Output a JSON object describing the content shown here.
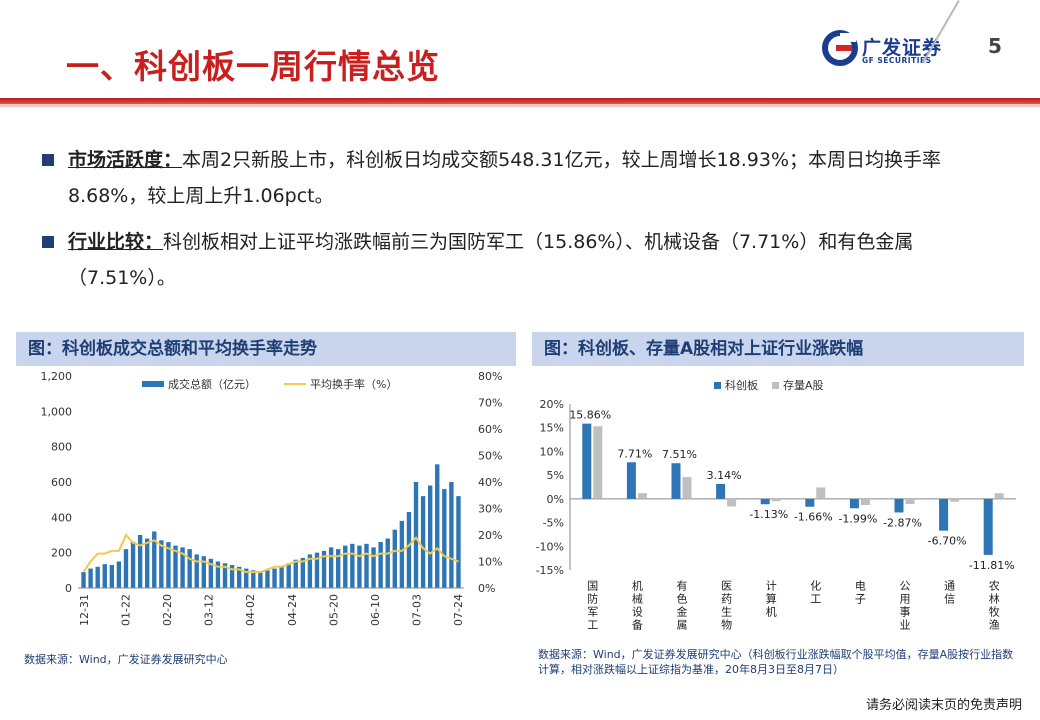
{
  "header": {
    "title": "一、科创板一周行情总览",
    "page_number": "5",
    "logo_cn": "广发证券",
    "logo_en": "GF SECURITIES"
  },
  "bullets": [
    {
      "key": "市场活跃度：",
      "text": "本周2只新股上市，科创板日均成交额548.31亿元，较上周增长18.93%；本周日均换手率8.68%，较上周上升1.06pct。"
    },
    {
      "key": "行业比较：",
      "text": "科创板相对上证平均涨跌幅前三为国防军工（15.86%）、机械设备（7.71%）和有色金属（7.51%）。"
    }
  ],
  "left_panel": {
    "title": "图：科创板成交总额和平均换手率走势",
    "source": "数据来源：Wind，广发证券发展研究中心"
  },
  "right_panel": {
    "title": "图：科创板、存量A股相对上证行业涨跌幅",
    "source": "数据来源：Wind，广发证券发展研究中心（科创板行业涨跌幅取个股平均值，存量A股按行业指数计算，相对涨跌幅以上证综指为基准，20年8月3日至8月7日）"
  },
  "disclaimer": "请务必阅读末页的免责声明",
  "colors": {
    "accent_red": "#c8201e",
    "navy": "#1f3f74",
    "bar_blue": "#2e75b6",
    "bar_gray": "#bfbfbf",
    "line_yellow": "#f2c94c"
  },
  "chart_data": [
    {
      "type": "bar",
      "title": "",
      "series": [
        {
          "name": "成交总额（亿元）",
          "kind": "bar",
          "axis": "left"
        },
        {
          "name": "平均换手率（%）",
          "kind": "line",
          "axis": "right"
        }
      ],
      "x_tick_labels": [
        "12-31",
        "01-22",
        "02-20",
        "03-12",
        "04-02",
        "04-24",
        "05-20",
        "06-10",
        "07-03",
        "07-24"
      ],
      "left_ylim": [
        0,
        1200
      ],
      "left_ticks": [
        "0",
        "200",
        "400",
        "600",
        "800",
        "1,000",
        "1,200"
      ],
      "right_ylim": [
        0,
        80
      ],
      "right_ticks": [
        "0%",
        "10%",
        "20%",
        "30%",
        "40%",
        "50%",
        "60%",
        "70%",
        "80%"
      ],
      "volume_by_period": [
        90,
        110,
        120,
        135,
        130,
        150,
        220,
        260,
        300,
        280,
        320,
        270,
        260,
        240,
        230,
        220,
        190,
        180,
        165,
        150,
        140,
        130,
        120,
        110,
        100,
        95,
        100,
        110,
        120,
        140,
        160,
        170,
        190,
        200,
        210,
        230,
        220,
        240,
        250,
        240,
        250,
        230,
        260,
        280,
        330,
        380,
        430,
        600,
        520,
        580,
        700,
        560,
        600,
        520
      ],
      "turnover_by_period": [
        6,
        10,
        13,
        13,
        14,
        14,
        20,
        17,
        16,
        17,
        18,
        16,
        15,
        14,
        13,
        11,
        10,
        10,
        9,
        8,
        8,
        7,
        7,
        6,
        6,
        6,
        7,
        8,
        8,
        9,
        10,
        10,
        11,
        11,
        12,
        12,
        12,
        13,
        13,
        12,
        13,
        12,
        13,
        13,
        14,
        14,
        16,
        19,
        15,
        13,
        15,
        12,
        11,
        10
      ]
    },
    {
      "type": "bar",
      "title": "",
      "categories": [
        "国防军工",
        "机械设备",
        "有色金属",
        "医药生物",
        "计算机",
        "化工",
        "电子",
        "公用事业",
        "通信",
        "农林牧渔"
      ],
      "series": [
        {
          "name": "科创板",
          "values": [
            15.86,
            7.71,
            7.51,
            3.14,
            -1.13,
            -1.66,
            -1.99,
            -2.87,
            -6.7,
            -11.81
          ]
        },
        {
          "name": "存量A股",
          "values": [
            15.3,
            1.2,
            4.6,
            -1.6,
            -0.5,
            2.4,
            -1.3,
            -1.1,
            -0.6,
            1.2
          ]
        }
      ],
      "data_labels": [
        "15.86%",
        "7.71%",
        "7.51%",
        "3.14%",
        "-1.13%",
        "-1.66%",
        "-1.99%",
        "-2.87%",
        "-6.70%",
        "-11.81%"
      ],
      "y_ticks": [
        "-15%",
        "-10%",
        "-5%",
        "0%",
        "5%",
        "10%",
        "15%",
        "20%"
      ],
      "ylim": [
        -15,
        20
      ]
    }
  ]
}
